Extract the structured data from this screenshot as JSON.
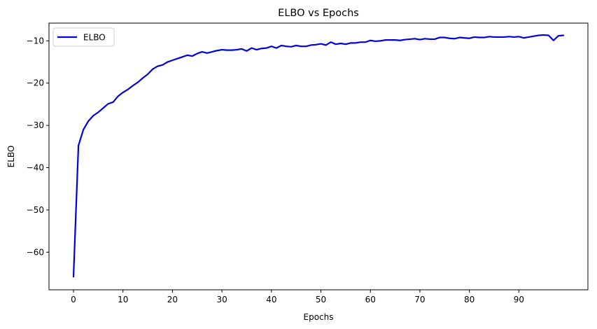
{
  "chart_data": {
    "type": "line",
    "title": "ELBO vs Epochs",
    "xlabel": "Epochs",
    "ylabel": "ELBO",
    "xlim": [
      -4.95,
      103.95
    ],
    "ylim": [
      -68.9,
      -5.8
    ],
    "xticks": [
      0,
      10,
      20,
      30,
      40,
      50,
      60,
      70,
      80,
      90
    ],
    "yticks": [
      -60,
      -50,
      -40,
      -30,
      -20,
      -10
    ],
    "grid": false,
    "legend_position": "top-left",
    "series": [
      {
        "name": "ELBO",
        "color": "#0000dd",
        "x": [
          0,
          1,
          2,
          3,
          4,
          5,
          6,
          7,
          8,
          9,
          10,
          11,
          12,
          13,
          14,
          15,
          16,
          17,
          18,
          19,
          20,
          21,
          22,
          23,
          24,
          25,
          26,
          27,
          28,
          29,
          30,
          31,
          32,
          33,
          34,
          35,
          36,
          37,
          38,
          39,
          40,
          41,
          42,
          43,
          44,
          45,
          46,
          47,
          48,
          49,
          50,
          51,
          52,
          53,
          54,
          55,
          56,
          57,
          58,
          59,
          60,
          61,
          62,
          63,
          64,
          65,
          66,
          67,
          68,
          69,
          70,
          71,
          72,
          73,
          74,
          75,
          76,
          77,
          78,
          79,
          80,
          81,
          82,
          83,
          84,
          85,
          86,
          87,
          88,
          89,
          90,
          91,
          92,
          93,
          94,
          95,
          96,
          97,
          98,
          99
        ],
        "values": [
          -65.8,
          -34.8,
          -31.0,
          -29.0,
          -27.7,
          -26.9,
          -25.9,
          -24.9,
          -24.5,
          -23.1,
          -22.2,
          -21.5,
          -20.6,
          -19.8,
          -18.8,
          -17.9,
          -16.7,
          -16.0,
          -15.7,
          -15.0,
          -14.6,
          -14.2,
          -13.8,
          -13.4,
          -13.6,
          -13.0,
          -12.6,
          -12.9,
          -12.6,
          -12.3,
          -12.1,
          -12.2,
          -12.2,
          -12.1,
          -11.9,
          -12.4,
          -11.7,
          -12.1,
          -11.8,
          -11.7,
          -11.3,
          -11.7,
          -11.1,
          -11.3,
          -11.4,
          -11.1,
          -11.3,
          -11.3,
          -11.0,
          -10.9,
          -10.7,
          -11.0,
          -10.3,
          -10.8,
          -10.6,
          -10.8,
          -10.5,
          -10.5,
          -10.3,
          -10.3,
          -9.9,
          -10.1,
          -10.0,
          -9.8,
          -9.8,
          -9.8,
          -9.9,
          -9.7,
          -9.6,
          -9.5,
          -9.7,
          -9.5,
          -9.6,
          -9.6,
          -9.2,
          -9.2,
          -9.4,
          -9.5,
          -9.2,
          -9.3,
          -9.4,
          -9.1,
          -9.2,
          -9.2,
          -9.0,
          -9.1,
          -9.1,
          -9.1,
          -9.0,
          -9.1,
          -9.0,
          -9.3,
          -9.1,
          -8.9,
          -8.7,
          -8.6,
          -8.7,
          -9.9,
          -8.8,
          -8.7
        ]
      }
    ]
  }
}
